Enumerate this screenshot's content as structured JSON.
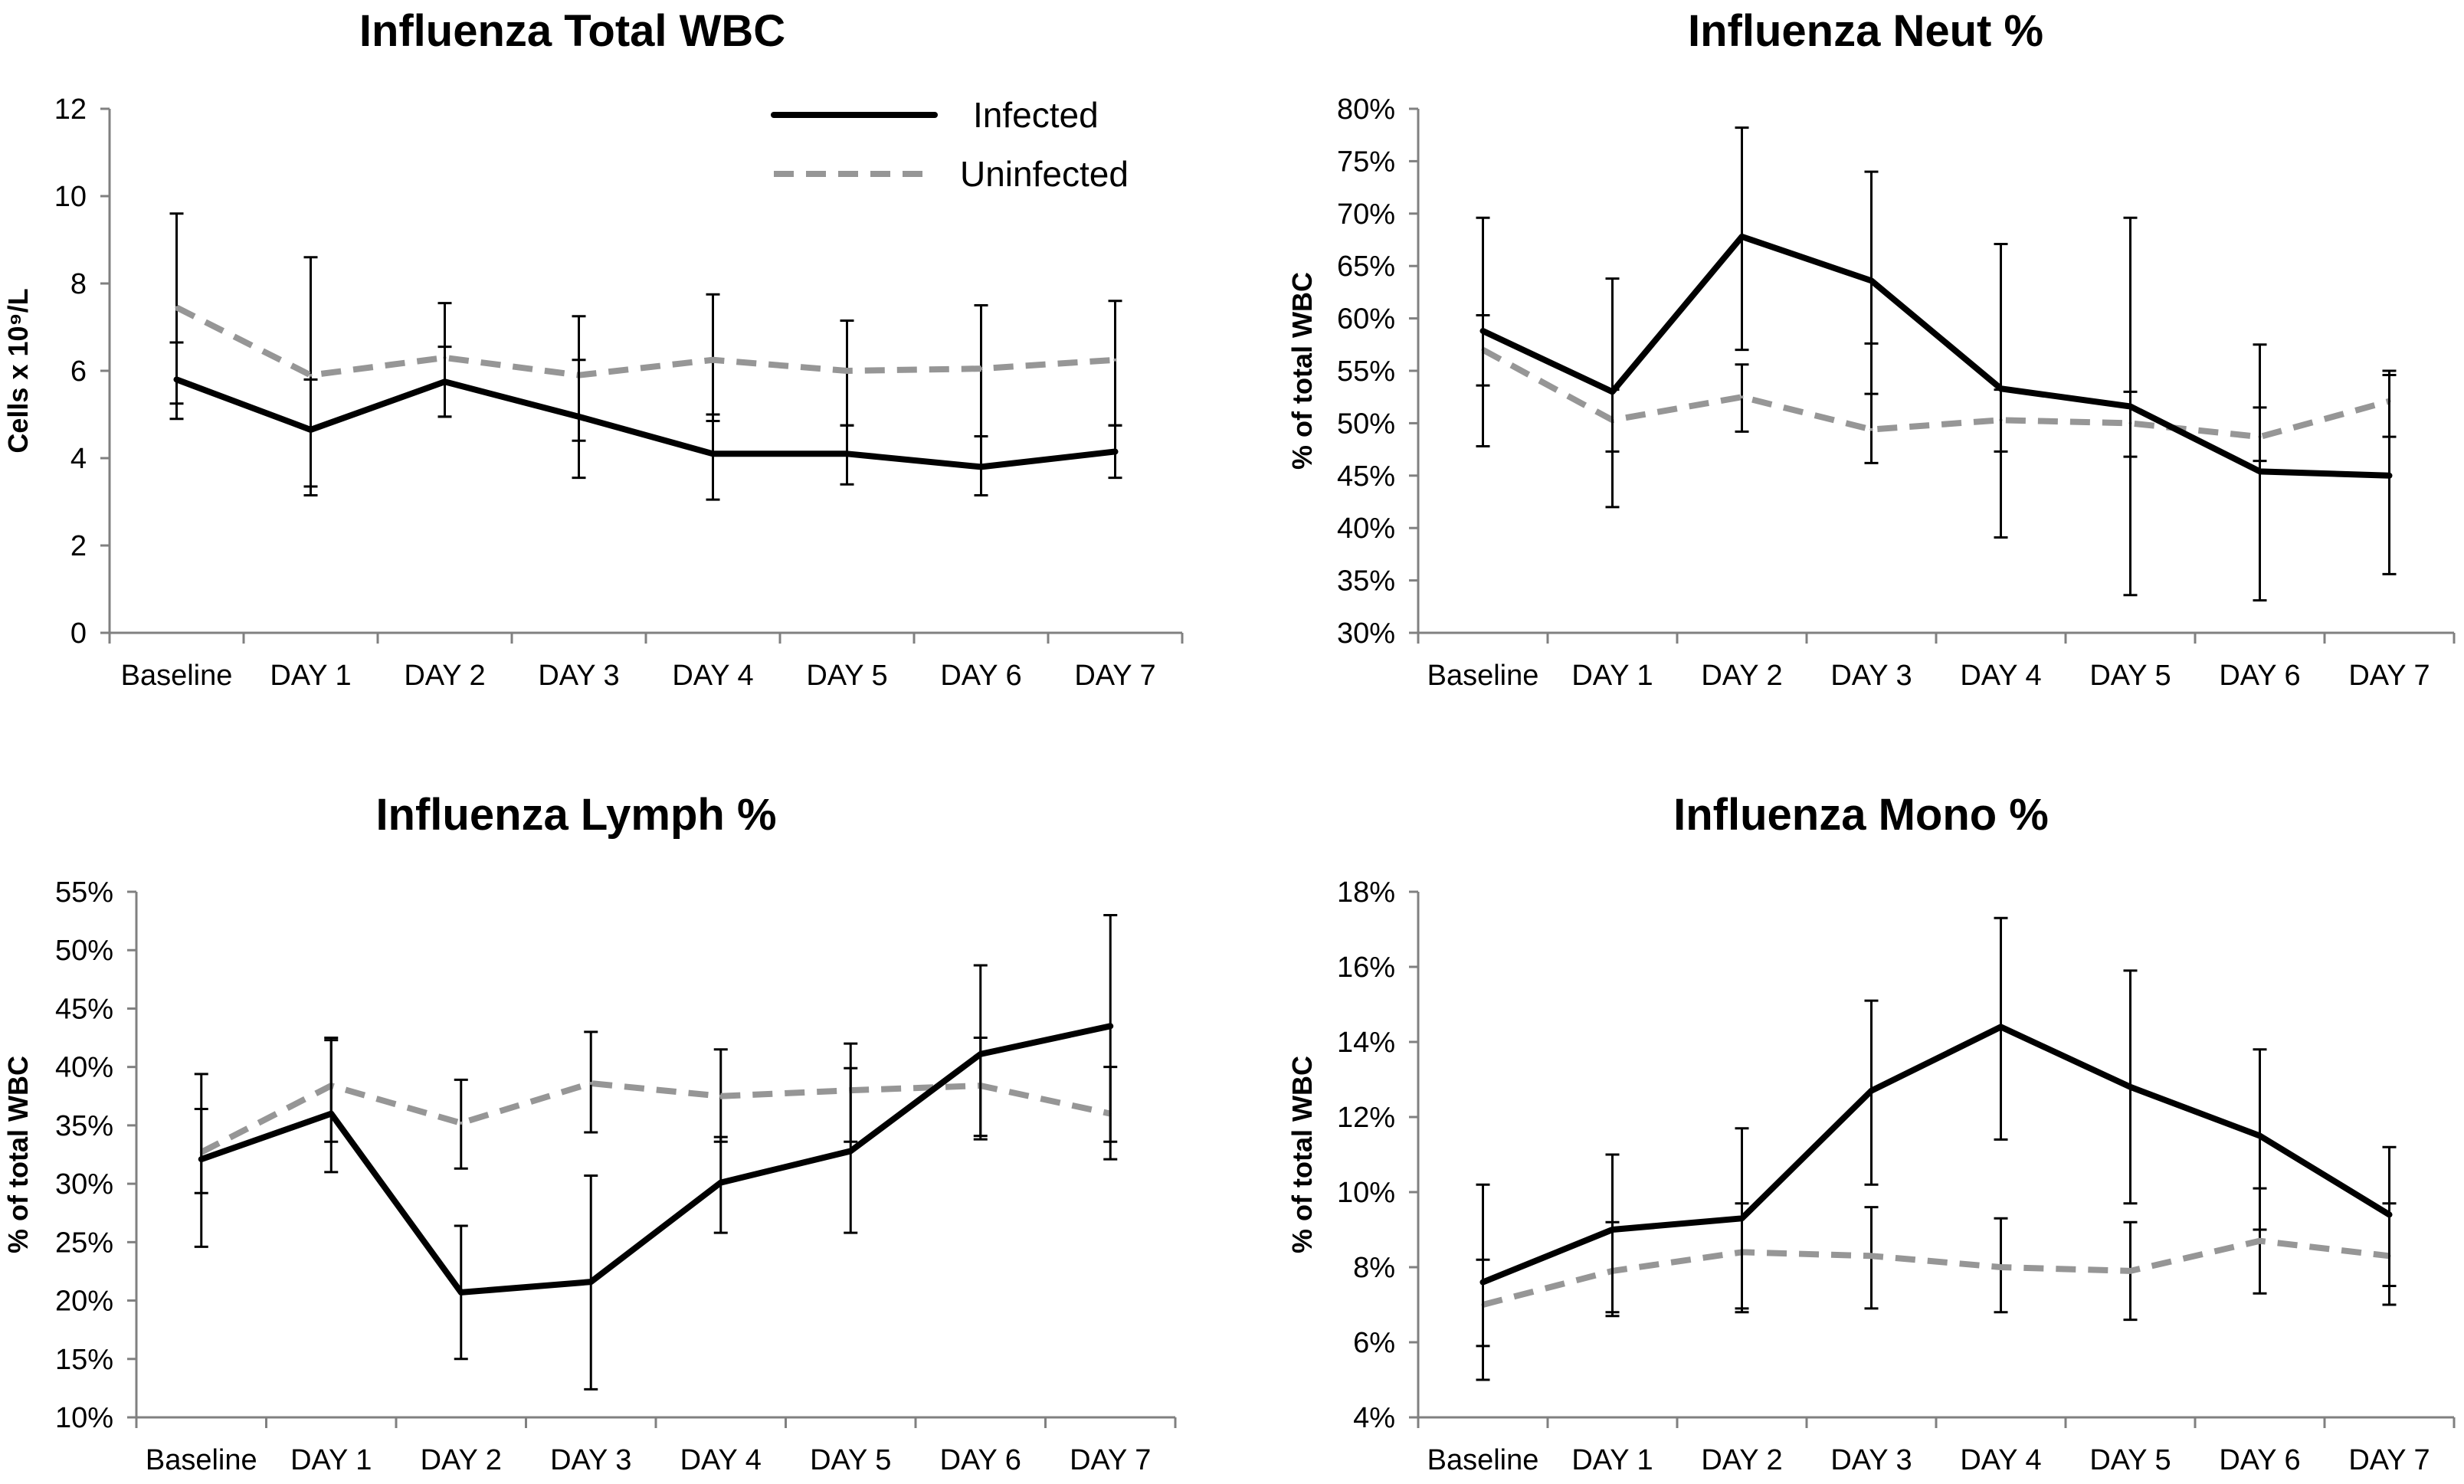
{
  "legend": {
    "series": [
      {
        "name": "Infected",
        "color": "#000000",
        "style": "solid"
      },
      {
        "name": "Uninfected",
        "color": "#969696",
        "style": "dashed"
      }
    ],
    "placement": "top-right of first chart"
  },
  "chart_data": [
    {
      "type": "line",
      "title": "Influenza Total WBC",
      "xlabel": "",
      "ylabel": "Cells x 10⁹/L",
      "categories": [
        "Baseline",
        "DAY 1",
        "DAY 2",
        "DAY 3",
        "DAY 4",
        "DAY 5",
        "DAY 6",
        "DAY 7"
      ],
      "ylim": [
        0,
        12
      ],
      "yticks": [
        0,
        2,
        4,
        6,
        8,
        10,
        12
      ],
      "ytick_labels": [
        "0",
        "2",
        "4",
        "6",
        "8",
        "10",
        "12"
      ],
      "grid": false,
      "series": [
        {
          "name": "Infected",
          "values": [
            5.8,
            4.65,
            5.75,
            4.95,
            4.1,
            4.1,
            3.8,
            4.15
          ],
          "err_low": [
            4.9,
            3.15,
            4.95,
            3.55,
            3.05,
            3.4,
            3.15,
            3.55
          ],
          "err_high": [
            6.65,
            5.8,
            6.55,
            6.25,
            5.0,
            4.75,
            4.5,
            4.75
          ]
        },
        {
          "name": "Uninfected",
          "values": [
            7.45,
            5.9,
            6.3,
            5.9,
            6.25,
            6.0,
            6.05,
            6.25
          ],
          "err_low": [
            5.25,
            3.35,
            4.95,
            4.4,
            4.85,
            4.75,
            4.5,
            4.75
          ],
          "err_high": [
            9.6,
            8.6,
            7.55,
            7.25,
            7.75,
            7.15,
            7.5,
            7.6
          ]
        }
      ]
    },
    {
      "type": "line",
      "title": "Influenza Neut %",
      "xlabel": "",
      "ylabel": "% of total WBC",
      "categories": [
        "Baseline",
        "DAY 1",
        "DAY 2",
        "DAY 3",
        "DAY 4",
        "DAY 5",
        "DAY 6",
        "DAY 7"
      ],
      "ylim": [
        30,
        80
      ],
      "yticks": [
        30,
        35,
        40,
        45,
        50,
        55,
        60,
        65,
        70,
        75,
        80
      ],
      "ytick_labels": [
        "30%",
        "35%",
        "40%",
        "45%",
        "50%",
        "55%",
        "60%",
        "65%",
        "70%",
        "75%",
        "80%"
      ],
      "grid": false,
      "series": [
        {
          "name": "Infected",
          "values": [
            58.8,
            53.0,
            67.8,
            63.6,
            53.3,
            51.6,
            45.4,
            45.0
          ],
          "err_low": [
            47.8,
            42.0,
            57.0,
            52.8,
            39.1,
            33.6,
            33.1,
            35.6
          ],
          "err_high": [
            69.6,
            63.8,
            78.2,
            74.0,
            67.1,
            69.6,
            57.5,
            54.6
          ]
        },
        {
          "name": "Uninfected",
          "values": [
            57.0,
            50.3,
            52.5,
            49.4,
            50.3,
            50.0,
            48.7,
            52.1
          ],
          "err_low": [
            53.6,
            47.3,
            49.2,
            46.2,
            47.3,
            46.8,
            46.4,
            48.7
          ],
          "err_high": [
            60.3,
            53.2,
            55.6,
            57.6,
            53.2,
            53.0,
            51.5,
            55.0
          ]
        }
      ]
    },
    {
      "type": "line",
      "title": "Influenza Lymph %",
      "xlabel": "",
      "ylabel": "% of total WBC",
      "categories": [
        "Baseline",
        "DAY 1",
        "DAY 2",
        "DAY 3",
        "DAY 4",
        "DAY 5",
        "DAY 6",
        "DAY 7"
      ],
      "ylim": [
        10,
        55
      ],
      "yticks": [
        10,
        15,
        20,
        25,
        30,
        35,
        40,
        45,
        50,
        55
      ],
      "ytick_labels": [
        "10%",
        "15%",
        "20%",
        "25%",
        "30%",
        "35%",
        "40%",
        "45%",
        "50%",
        "55%"
      ],
      "grid": false,
      "series": [
        {
          "name": "Infected",
          "values": [
            32.1,
            36.0,
            20.7,
            21.6,
            30.1,
            32.8,
            41.1,
            43.5
          ],
          "err_low": [
            24.6,
            33.6,
            15.0,
            12.4,
            25.8,
            25.8,
            33.8,
            33.6
          ],
          "err_high": [
            39.4,
            42.5,
            26.4,
            30.7,
            34.0,
            39.9,
            48.7,
            53.0
          ]
        },
        {
          "name": "Uninfected",
          "values": [
            32.7,
            38.4,
            35.2,
            38.6,
            37.5,
            38.0,
            38.4,
            36.0
          ],
          "err_low": [
            29.2,
            31.0,
            31.3,
            34.4,
            33.6,
            33.6,
            34.1,
            32.1
          ],
          "err_high": [
            36.4,
            42.3,
            38.9,
            43.0,
            41.5,
            42.0,
            42.5,
            40.0
          ]
        }
      ]
    },
    {
      "type": "line",
      "title": "Influenza Mono %",
      "xlabel": "",
      "ylabel": "% of total WBC",
      "categories": [
        "Baseline",
        "DAY 1",
        "DAY 2",
        "DAY 3",
        "DAY 4",
        "DAY 5",
        "DAY 6",
        "DAY 7"
      ],
      "ylim": [
        4,
        18
      ],
      "yticks": [
        4,
        6,
        8,
        10,
        12,
        14,
        16,
        18
      ],
      "ytick_labels": [
        "4%",
        "6%",
        "8%",
        "10%",
        "12%",
        "14%",
        "16%",
        "18%"
      ],
      "grid": false,
      "series": [
        {
          "name": "Infected",
          "values": [
            7.6,
            9.0,
            9.3,
            12.7,
            14.4,
            12.8,
            11.5,
            9.4
          ],
          "err_low": [
            5.0,
            6.8,
            6.9,
            10.2,
            11.4,
            9.7,
            9.0,
            7.5
          ],
          "err_high": [
            10.2,
            11.0,
            11.7,
            15.1,
            17.3,
            15.9,
            13.8,
            11.2
          ]
        },
        {
          "name": "Uninfected",
          "values": [
            7.0,
            7.9,
            8.4,
            8.3,
            8.0,
            7.9,
            8.7,
            8.3
          ],
          "err_low": [
            5.9,
            6.7,
            6.8,
            6.9,
            6.8,
            6.6,
            7.3,
            7.0
          ],
          "err_high": [
            8.2,
            9.2,
            9.7,
            9.6,
            9.3,
            9.2,
            10.1,
            9.7
          ]
        }
      ]
    }
  ]
}
